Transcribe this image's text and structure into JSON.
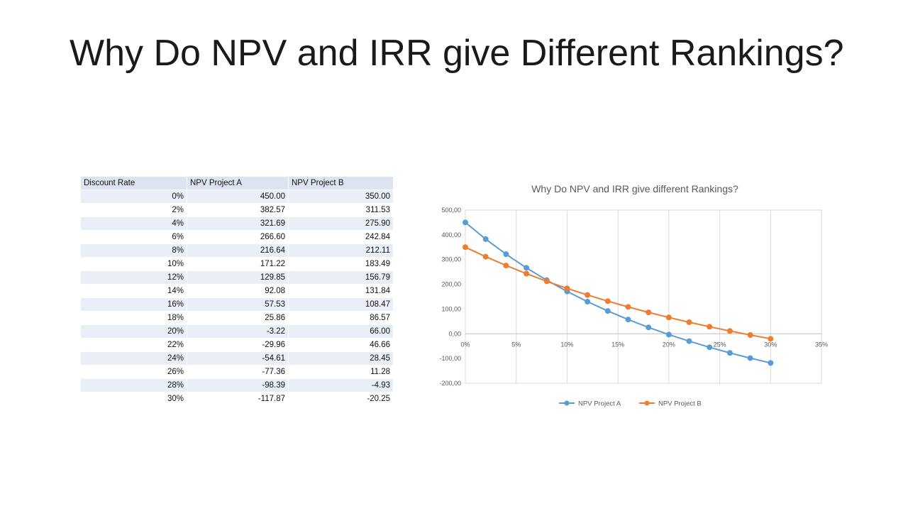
{
  "slide": {
    "title": "Why Do NPV and IRR give Different Rankings?"
  },
  "table": {
    "headers": [
      "Discount Rate",
      "NPV Project A",
      "NPV Project B"
    ],
    "rows": [
      [
        "0%",
        "450.00",
        "350.00"
      ],
      [
        "2%",
        "382.57",
        "311.53"
      ],
      [
        "4%",
        "321.69",
        "275.90"
      ],
      [
        "6%",
        "266.60",
        "242.84"
      ],
      [
        "8%",
        "216.64",
        "212.11"
      ],
      [
        "10%",
        "171.22",
        "183.49"
      ],
      [
        "12%",
        "129.85",
        "156.79"
      ],
      [
        "14%",
        "92.08",
        "131.84"
      ],
      [
        "16%",
        "57.53",
        "108.47"
      ],
      [
        "18%",
        "25.86",
        "86.57"
      ],
      [
        "20%",
        "-3.22",
        "66.00"
      ],
      [
        "22%",
        "-29.96",
        "46.66"
      ],
      [
        "24%",
        "-54.61",
        "28.45"
      ],
      [
        "26%",
        "-77.36",
        "11.28"
      ],
      [
        "28%",
        "-98.39",
        "-4.93"
      ],
      [
        "30%",
        "-117.87",
        "-20.25"
      ]
    ]
  },
  "chart_data": {
    "type": "line",
    "title": "Why Do NPV and IRR give different Rankings?",
    "xlabel": "",
    "ylabel": "",
    "x": [
      0,
      0.02,
      0.04,
      0.06,
      0.08,
      0.1,
      0.12,
      0.14,
      0.16,
      0.18,
      0.2,
      0.22,
      0.24,
      0.26,
      0.28,
      0.3
    ],
    "xlim": [
      0,
      0.35
    ],
    "ylim": [
      -200,
      500
    ],
    "x_ticks": [
      "0%",
      "5%",
      "10%",
      "15%",
      "20%",
      "25%",
      "30%",
      "35%"
    ],
    "y_ticks": [
      "500,00",
      "400,00",
      "300,00",
      "200,00",
      "100,00",
      "0,00",
      "-100,00",
      "-200,00"
    ],
    "grid": "vertical",
    "legend_position": "bottom",
    "series": [
      {
        "name": "NPV Project A",
        "color": "#5b9bd5",
        "values": [
          450.0,
          382.57,
          321.69,
          266.6,
          216.64,
          171.22,
          129.85,
          92.08,
          57.53,
          25.86,
          -3.22,
          -29.96,
          -54.61,
          -77.36,
          -98.39,
          -117.87
        ]
      },
      {
        "name": "NPV Project B",
        "color": "#ed7d31",
        "values": [
          350.0,
          311.53,
          275.9,
          242.84,
          212.11,
          183.49,
          156.79,
          131.84,
          108.47,
          86.57,
          66.0,
          46.66,
          28.45,
          11.28,
          -4.93,
          -20.25
        ]
      }
    ]
  }
}
